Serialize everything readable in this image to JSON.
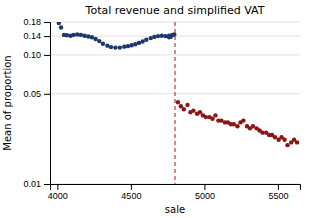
{
  "chart_data": {
    "type": "scatter",
    "title": "Total revenue and simplified VAT",
    "x_label": "sale",
    "y_label": "Mean of proportion",
    "log": "y",
    "grid": true,
    "xlim": [
      3950,
      5650
    ],
    "ylim": [
      0.01,
      0.18
    ],
    "xticks": [
      4000,
      4500,
      5000,
      5500
    ],
    "yticks": [
      0.01,
      0.05,
      {
        "value": 0.1,
        "label": "0.10"
      },
      0.14,
      0.18
    ],
    "series": [
      {
        "color": "#1b3a6b",
        "marker": "circle",
        "x": [
          4010,
          4025,
          4045,
          4065,
          4090,
          4110,
          4135,
          4160,
          4185,
          4210,
          4235,
          4260,
          4285,
          4310,
          4340,
          4365,
          4395,
          4425,
          4455,
          4480,
          4505,
          4530,
          4555,
          4580,
          4605,
          4635,
          4660,
          4685,
          4710,
          4735,
          4760,
          4785,
          4760,
          4770,
          4780,
          4795
        ],
        "values": [
          0.177,
          0.163,
          0.143,
          0.142,
          0.141,
          0.143,
          0.144,
          0.143,
          0.141,
          0.139,
          0.137,
          0.133,
          0.128,
          0.122,
          0.118,
          0.115,
          0.114,
          0.114,
          0.116,
          0.117,
          0.119,
          0.121,
          0.124,
          0.127,
          0.131,
          0.135,
          0.138,
          0.14,
          0.141,
          0.14,
          0.141,
          0.143,
          0.137,
          0.138,
          0.142,
          0.144
        ]
      },
      {
        "color": "#8b1515",
        "marker": "circle",
        "x": [
          4820,
          4840,
          4860,
          4885,
          4905,
          4925,
          4950,
          4970,
          4990,
          5010,
          5035,
          5055,
          5075,
          5095,
          5115,
          5140,
          5160,
          5180,
          5200,
          5225,
          5245,
          5265,
          5290,
          5310,
          5330,
          5355,
          5375,
          5395,
          5420,
          5440,
          5460,
          5480,
          5505,
          5525,
          5545,
          5565,
          5590,
          5610,
          5630
        ],
        "values": [
          0.043,
          0.04,
          0.038,
          0.041,
          0.036,
          0.037,
          0.035,
          0.036,
          0.034,
          0.033,
          0.033,
          0.032,
          0.034,
          0.031,
          0.031,
          0.03,
          0.03,
          0.029,
          0.029,
          0.028,
          0.03,
          0.031,
          0.028,
          0.027,
          0.028,
          0.027,
          0.026,
          0.025,
          0.025,
          0.024,
          0.024,
          0.023,
          0.022,
          0.023,
          0.022,
          0.02,
          0.021,
          0.022,
          0.021
        ]
      }
    ],
    "vlines": [
      {
        "x": 4800,
        "color": "#c0392b",
        "line_style": "dashed"
      }
    ]
  }
}
